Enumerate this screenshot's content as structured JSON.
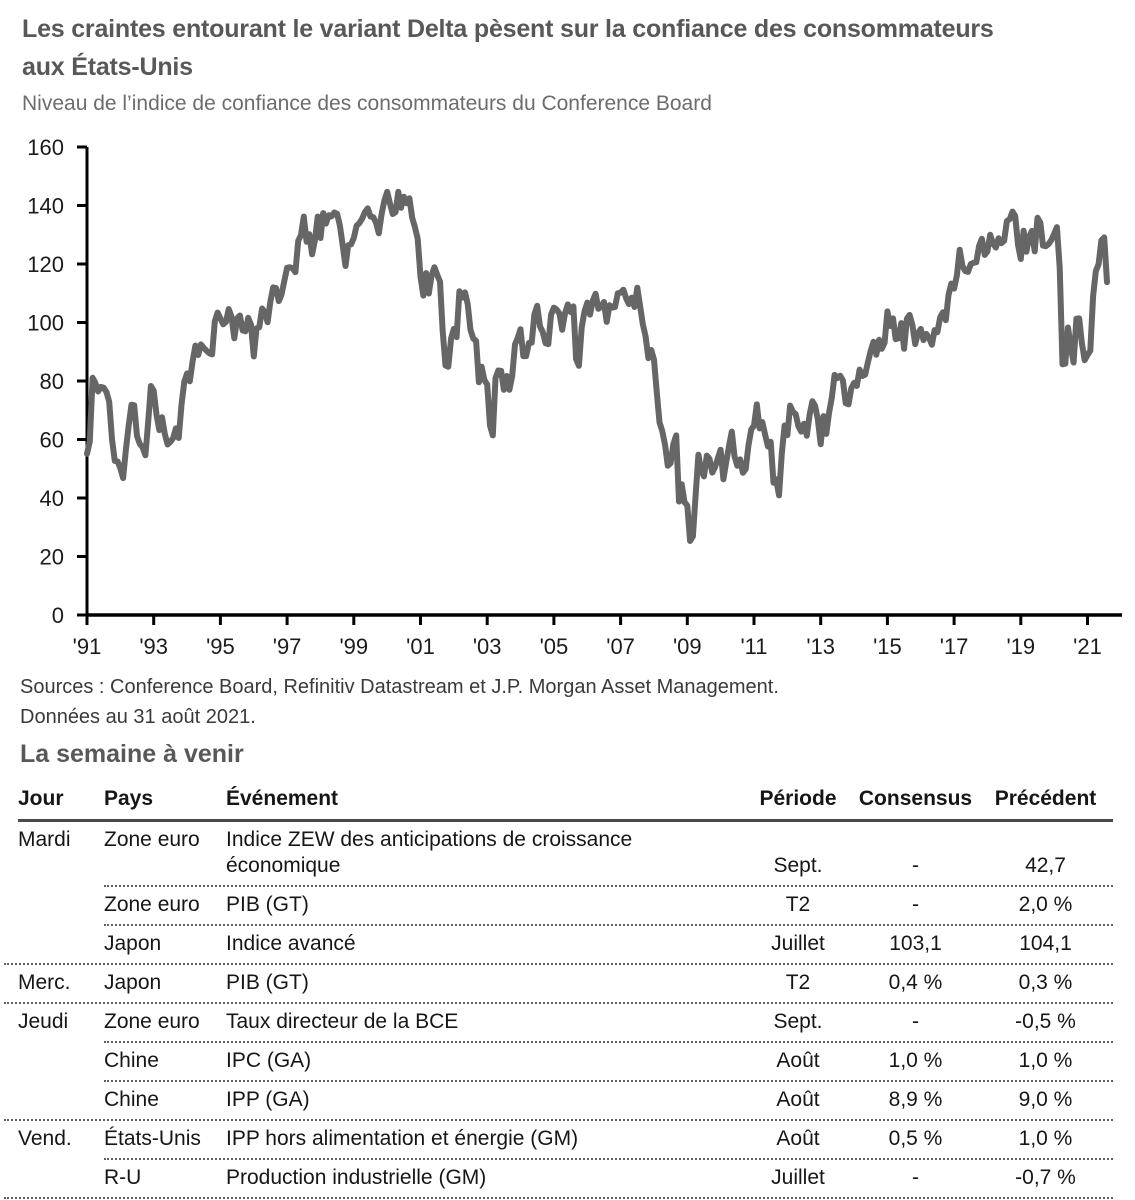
{
  "header": {
    "title": "Les craintes entourant le variant Delta pèsent sur la confiance des consommateurs aux États-Unis",
    "subtitle": "Niveau de l’indice de confiance des consommateurs du Conference Board"
  },
  "chart_data": {
    "type": "line",
    "title": "Les craintes entourant le variant Delta pèsent sur la confiance des consommateurs aux États-Unis",
    "subtitle": "Niveau de l’indice de confiance des consommateurs du Conference Board",
    "xlabel": "",
    "ylabel": "",
    "ylim": [
      0,
      160
    ],
    "y_ticks": [
      0,
      20,
      40,
      60,
      80,
      100,
      120,
      140,
      160
    ],
    "x_tick_years": [
      1991,
      1993,
      1995,
      1997,
      1999,
      2001,
      2003,
      2005,
      2007,
      2009,
      2011,
      2013,
      2015,
      2017,
      2019,
      2021
    ],
    "x_tick_labels": [
      "'91",
      "'93",
      "'95",
      "'97",
      "'99",
      "'01",
      "'03",
      "'05",
      "'07",
      "'09",
      "'11",
      "'13",
      "'15",
      "'17",
      "'19",
      "'21"
    ],
    "start_year": 1991,
    "frequency": "monthly",
    "grid": false,
    "legend": "none",
    "line_color": "#666666",
    "series": [
      {
        "name": "Indice de confiance des consommateurs du Conference Board",
        "values": [
          55.1,
          59.4,
          81.1,
          79.4,
          76.4,
          78.0,
          77.7,
          76.2,
          72.9,
          60.1,
          52.7,
          52.5,
          50.2,
          46.8,
          56.5,
          64.8,
          71.9,
          71.7,
          61.2,
          58.5,
          57.3,
          54.6,
          65.6,
          78.3,
          76.7,
          68.5,
          63.2,
          67.6,
          61.9,
          58.3,
          59.2,
          60.5,
          63.8,
          60.5,
          71.9,
          79.8,
          82.6,
          79.9,
          86.7,
          92.1,
          88.9,
          92.5,
          91.3,
          90.4,
          89.5,
          89.1,
          100.4,
          103.4,
          101.4,
          99.4,
          100.2,
          104.6,
          102.0,
          94.6,
          101.4,
          102.4,
          97.3,
          97.0,
          101.6,
          99.2,
          88.4,
          98.0,
          98.4,
          104.8,
          103.5,
          100.1,
          107.2,
          112.0,
          111.8,
          107.3,
          109.5,
          114.2,
          118.7,
          118.9,
          118.5,
          117.2,
          127.9,
          129.9,
          136.2,
          127.6,
          130.2,
          123.3,
          128.1,
          136.2,
          128.9,
          137.4,
          133.8,
          136.7,
          136.3,
          137.6,
          137.2,
          133.1,
          126.4,
          119.3,
          126.4,
          126.7,
          128.9,
          133.1,
          134.0,
          135.5,
          137.7,
          139.0,
          136.2,
          136.0,
          134.2,
          130.5,
          137.0,
          141.7,
          144.7,
          140.8,
          137.1,
          137.7,
          144.7,
          139.2,
          143.0,
          140.8,
          142.5,
          135.8,
          132.6,
          128.6,
          115.7,
          109.2,
          116.9,
          109.9,
          116.1,
          118.9,
          116.3,
          114.0,
          97.0,
          85.3,
          84.9,
          94.6,
          97.8,
          95.0,
          110.7,
          108.5,
          110.3,
          106.3,
          97.4,
          94.5,
          93.7,
          79.6,
          84.9,
          80.3,
          78.8,
          64.8,
          61.4,
          81.0,
          83.6,
          83.5,
          77.0,
          81.7,
          77.0,
          81.7,
          92.5,
          94.8,
          97.7,
          88.5,
          88.5,
          93.0,
          93.1,
          102.8,
          105.7,
          98.7,
          96.7,
          92.9,
          92.6,
          102.7,
          105.1,
          104.4,
          103.0,
          97.5,
          103.1,
          106.2,
          103.6,
          105.5,
          87.5,
          85.2,
          98.3,
          103.8,
          106.8,
          102.7,
          107.5,
          109.8,
          104.7,
          105.4,
          107.0,
          100.2,
          105.9,
          105.1,
          105.3,
          110.0,
          110.2,
          111.2,
          108.2,
          106.3,
          108.5,
          105.3,
          111.9,
          105.6,
          99.5,
          95.2,
          87.8,
          90.6,
          87.3,
          76.4,
          65.9,
          62.8,
          58.1,
          51.0,
          51.9,
          58.5,
          61.4,
          38.8,
          44.7,
          38.6,
          37.4,
          25.3,
          26.9,
          40.8,
          54.8,
          49.3,
          47.4,
          54.5,
          53.4,
          48.7,
          50.6,
          53.6,
          56.5,
          46.4,
          52.3,
          57.7,
          62.7,
          54.3,
          51.0,
          53.2,
          48.6,
          49.9,
          57.8,
          63.4,
          64.8,
          72.0,
          63.8,
          66.0,
          61.7,
          57.6,
          59.2,
          45.2,
          46.4,
          40.9,
          55.2,
          64.8,
          61.5,
          71.6,
          69.5,
          68.7,
          64.4,
          62.7,
          65.4,
          61.3,
          68.4,
          73.1,
          71.5,
          66.7,
          58.4,
          68.0,
          61.9,
          69.0,
          74.3,
          82.1,
          81.0,
          81.8,
          80.2,
          72.4,
          72.0,
          77.5,
          79.4,
          78.3,
          83.9,
          81.7,
          82.2,
          86.4,
          90.3,
          93.4,
          89.0,
          94.1,
          91.0,
          93.1,
          103.8,
          98.8,
          101.4,
          94.3,
          94.6,
          99.8,
          91.0,
          101.3,
          102.6,
          99.1,
          92.6,
          96.3,
          97.8,
          94.0,
          96.1,
          94.7,
          92.4,
          97.4,
          96.7,
          101.8,
          103.5,
          100.8,
          109.4,
          113.3,
          111.6,
          116.1,
          124.9,
          119.4,
          117.6,
          117.3,
          120.0,
          120.4,
          120.6,
          126.2,
          128.6,
          123.1,
          124.3,
          130.0,
          127.0,
          125.6,
          128.8,
          127.1,
          127.9,
          134.7,
          135.3,
          137.9,
          136.4,
          126.6,
          121.7,
          131.4,
          124.2,
          129.2,
          131.3,
          124.3,
          135.8,
          134.2,
          126.3,
          126.1,
          126.8,
          128.2,
          130.4,
          132.6,
          118.8,
          85.7,
          85.9,
          98.3,
          91.7,
          86.3,
          101.3,
          101.4,
          92.9,
          87.1,
          88.9,
          90.4,
          109.0,
          117.5,
          120.0,
          128.1,
          129.1,
          113.8
        ]
      }
    ]
  },
  "sources": {
    "line1": "Sources : Conference Board, Refinitiv Datastream et J.P. Morgan Asset Management.",
    "line2": "Données au 31 août 2021."
  },
  "week_ahead": {
    "title": "La semaine à venir",
    "columns": [
      "Jour",
      "Pays",
      "Événement",
      "Période",
      "Consensus",
      "Précédent"
    ],
    "rows": [
      {
        "jour": "Mardi",
        "pays": "Zone euro",
        "evenement": "Indice ZEW des anticipations de croissance économique",
        "periode": "Sept.",
        "consensus": "-",
        "precedent": "42,7",
        "divider": "indent"
      },
      {
        "jour": "",
        "pays": "Zone euro",
        "evenement": "PIB (GT)",
        "periode": "T2",
        "consensus": "-",
        "precedent": "2,0 %",
        "divider": "indent"
      },
      {
        "jour": "",
        "pays": "Japon",
        "evenement": "Indice avancé",
        "periode": "Juillet",
        "consensus": "103,1",
        "precedent": "104,1",
        "divider": "full"
      },
      {
        "jour": "Merc.",
        "pays": "Japon",
        "evenement": "PIB (GT)",
        "periode": "T2",
        "consensus": "0,4 %",
        "precedent": "0,3 %",
        "divider": "full"
      },
      {
        "jour": "Jeudi",
        "pays": "Zone euro",
        "evenement": "Taux directeur de la BCE",
        "periode": "Sept.",
        "consensus": "-",
        "precedent": "-0,5 %",
        "divider": "indent"
      },
      {
        "jour": "",
        "pays": "Chine",
        "evenement": "IPC (GA)",
        "periode": "Août",
        "consensus": "1,0 %",
        "precedent": "1,0 %",
        "divider": "indent"
      },
      {
        "jour": "",
        "pays": "Chine",
        "evenement": "IPP (GA)",
        "periode": "Août",
        "consensus": "8,9 %",
        "precedent": "9,0 %",
        "divider": "full"
      },
      {
        "jour": "Vend.",
        "pays": "États-Unis",
        "evenement": "IPP hors alimentation et énergie (GM)",
        "periode": "Août",
        "consensus": "0,5 %",
        "precedent": "1,0 %",
        "divider": "indent"
      },
      {
        "jour": "",
        "pays": "R-U",
        "evenement": "Production industrielle (GM)",
        "periode": "Juillet",
        "consensus": "-",
        "precedent": "-0,7 %",
        "divider": "full"
      }
    ]
  },
  "colors": {
    "title_gray": "#57585a",
    "subtitle_gray": "#6b6c6e",
    "line_gray": "#666666",
    "axis_black": "#000000",
    "table_text": "#161616"
  }
}
